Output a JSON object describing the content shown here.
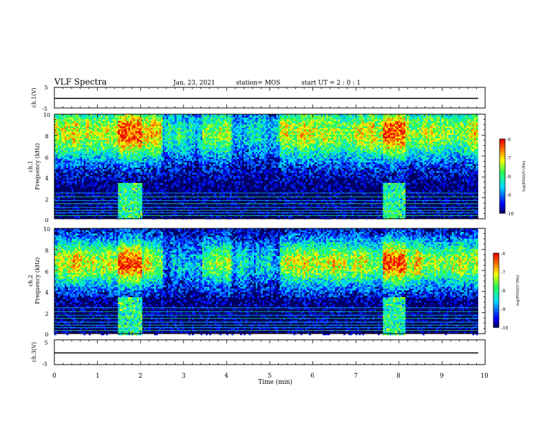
{
  "header": {
    "title": "VLF Spectra",
    "date": "Jan. 23, 2021",
    "station": "station= MOS",
    "start_ut": "start  UT =   2 : 0  : 1"
  },
  "chart_data": [
    {
      "type": "line",
      "name": "ch1-voltage",
      "ylabel": "ch.1(V)",
      "ylim": [
        -5,
        5
      ],
      "yticks": [
        "5",
        "-5"
      ],
      "level": 0,
      "xlim": [
        0,
        10
      ]
    },
    {
      "type": "heatmap",
      "name": "ch1-spectrogram",
      "ylabel_1": "ch.1",
      "ylabel_2": "Frequency (kHz)",
      "xlim": [
        0,
        10
      ],
      "ylim": [
        0,
        10
      ],
      "yticks": [
        "0",
        "2",
        "4",
        "6",
        "8",
        "10"
      ],
      "colorbar": {
        "label": "log(PSD)(V²/Hz)",
        "range": [
          -10,
          -6
        ],
        "ticks": [
          "-6",
          "-7",
          "-8",
          "-9",
          "-10"
        ]
      },
      "bursts": [
        [
          1.47,
          2.02
        ],
        [
          7.62,
          8.12
        ]
      ],
      "data_end": 9.84
    },
    {
      "type": "heatmap",
      "name": "ch2-spectrogram",
      "ylabel_1": "ch.2",
      "ylabel_2": "Frequency (kHz)",
      "xlim": [
        0,
        10
      ],
      "ylim": [
        0,
        10
      ],
      "yticks": [
        "0",
        "2",
        "4",
        "6",
        "8",
        "10"
      ],
      "colorbar": {
        "label": "log(PSD)(V²/Hz)",
        "range": [
          -10,
          -6
        ],
        "ticks": [
          "-6",
          "-7",
          "-8",
          "-9",
          "-10"
        ]
      },
      "bursts": [
        [
          1.47,
          2.02
        ],
        [
          7.62,
          8.12
        ]
      ],
      "data_end": 9.84
    },
    {
      "type": "line",
      "name": "ch3-voltage",
      "ylabel": "ch.3(V)",
      "ylim": [
        -5,
        5
      ],
      "yticks": [
        "5",
        "-5"
      ],
      "level": 0,
      "xlim": [
        0,
        10
      ],
      "xlabel": "Time (min)",
      "xticks": [
        "0",
        "1",
        "2",
        "3",
        "4",
        "5",
        "6",
        "7",
        "8",
        "9",
        "10"
      ]
    }
  ]
}
